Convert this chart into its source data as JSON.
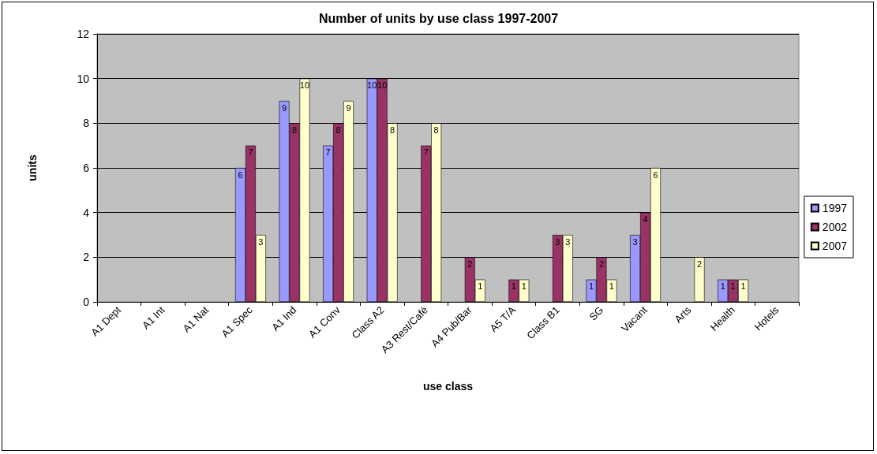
{
  "chart_data": {
    "type": "bar",
    "title": "Number of units by use class 1997-2007",
    "xlabel": "use class",
    "ylabel": "units",
    "categories": [
      "A1 Dept",
      "A1 Int",
      "A1 Nat",
      "A1 Spec",
      "A1 Ind",
      "A1 Conv",
      "Class A2",
      "A3 Rest/Café",
      "A4 Pub/Bar",
      "A5 T/A",
      "Class B1",
      "SG",
      "Vacant",
      "Arts",
      "Health",
      "Hotels"
    ],
    "series": [
      {
        "name": "1997",
        "color": "#9999ff",
        "values": [
          null,
          null,
          null,
          6,
          9,
          7,
          10,
          null,
          null,
          null,
          null,
          1,
          3,
          null,
          1,
          null
        ]
      },
      {
        "name": "2002",
        "color": "#993366",
        "values": [
          null,
          null,
          null,
          7,
          8,
          8,
          10,
          7,
          2,
          1,
          3,
          2,
          4,
          null,
          1,
          null
        ]
      },
      {
        "name": "2007",
        "color": "#ffffcc",
        "values": [
          null,
          null,
          null,
          3,
          10,
          9,
          8,
          8,
          1,
          1,
          3,
          1,
          6,
          2,
          1,
          null
        ]
      }
    ],
    "ylim": [
      0,
      12
    ],
    "yticks": [
      0,
      2,
      4,
      6,
      8,
      10,
      12
    ],
    "grid": "y",
    "legend": "right",
    "data_labels": true
  }
}
